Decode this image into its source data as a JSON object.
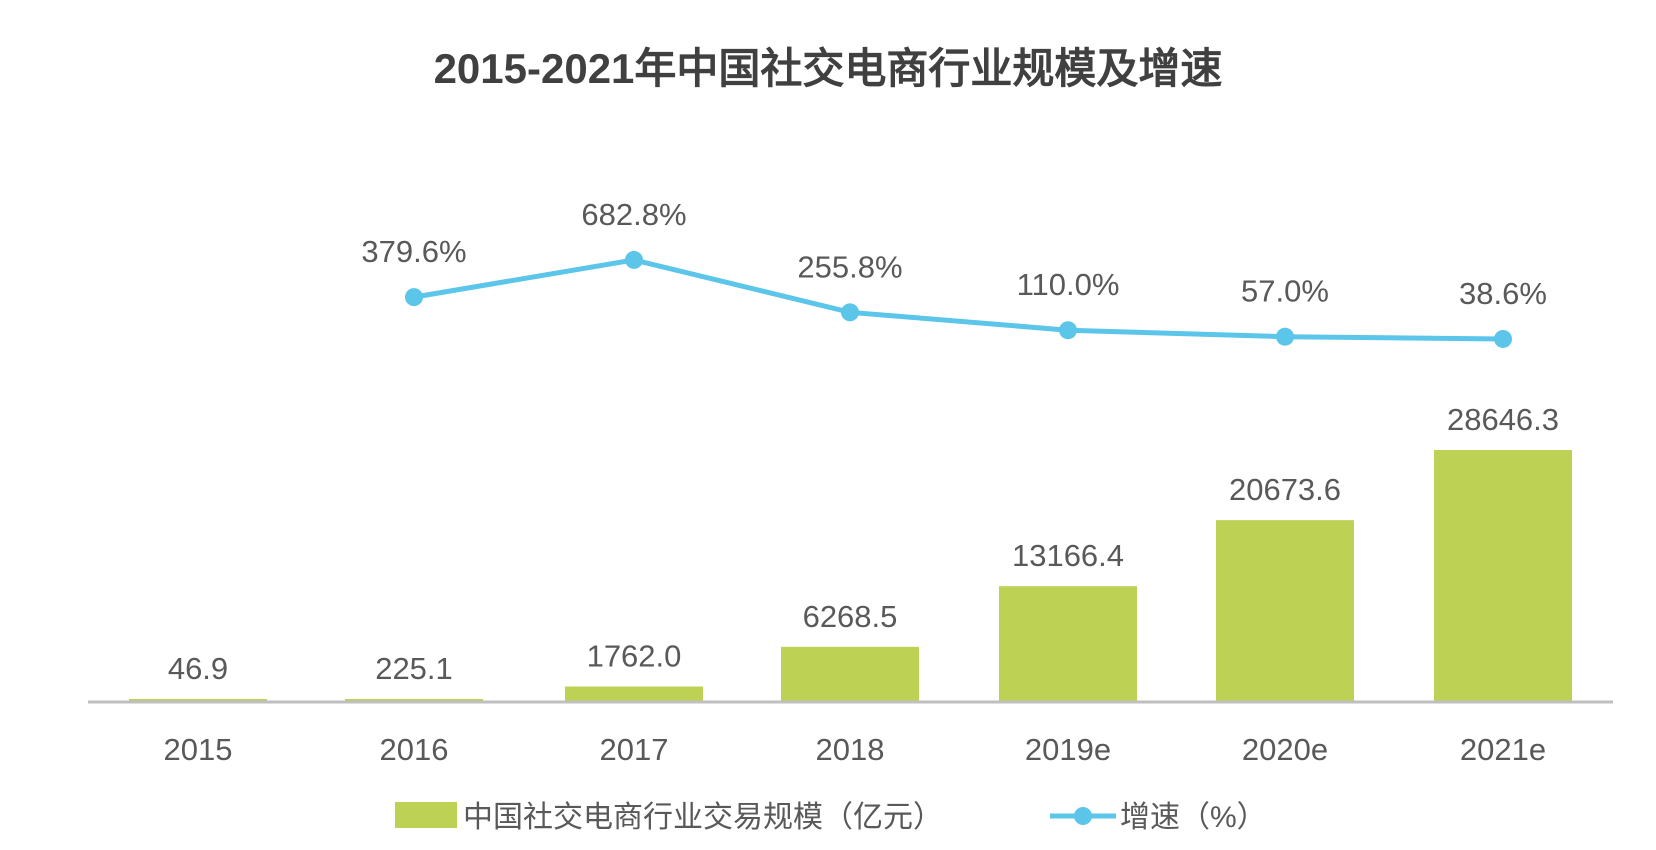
{
  "chart_data": {
    "type": "bar+line",
    "title": "2015-2021年中国社交电商行业规模及增速",
    "categories": [
      "2015",
      "2016",
      "2017",
      "2018",
      "2019e",
      "2020e",
      "2021e"
    ],
    "series": [
      {
        "name": "中国社交电商行业交易规模（亿元）",
        "type": "bar",
        "color": "#bdd155",
        "values": [
          46.9,
          225.1,
          1762.0,
          6268.5,
          13166.4,
          20673.6,
          28646.3
        ],
        "labels": [
          "46.9",
          "225.1",
          "1762.0",
          "6268.5",
          "13166.4",
          "20673.6",
          "28646.3"
        ]
      },
      {
        "name": "增速（%）",
        "type": "line",
        "color": "#5bc5ea",
        "values": [
          null,
          379.6,
          682.8,
          255.8,
          110.0,
          57.0,
          38.6
        ],
        "labels": [
          "",
          "379.6%",
          "682.8%",
          "255.8%",
          "110.0%",
          "57.0%",
          "38.6%"
        ]
      }
    ],
    "legend_position": "bottom",
    "grid": false
  }
}
